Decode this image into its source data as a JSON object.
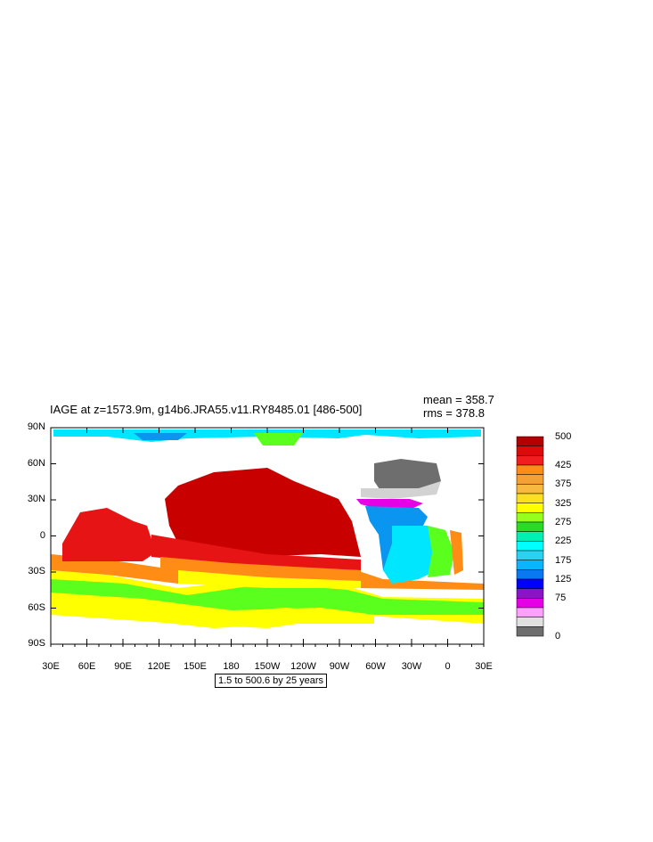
{
  "title": "IAGE at z=1573.9m, g14b6.JRA55.v11.RY8485.01 [486-500]",
  "stats": {
    "mean": "mean = 358.7",
    "rms": "rms = 378.8"
  },
  "lat_ticks": [
    "90N",
    "60N",
    "30N",
    "0",
    "30S",
    "60S",
    "90S"
  ],
  "lon_ticks": [
    "30E",
    "60E",
    "90E",
    "120E",
    "150E",
    "180",
    "150W",
    "120W",
    "90W",
    "60W",
    "30W",
    "0",
    "30E"
  ],
  "contour_info": "1.5 to 500.6 by 25 years",
  "colorbar": {
    "labels": [
      "500",
      "425",
      "375",
      "325",
      "275",
      "225",
      "175",
      "125",
      "75",
      "0"
    ],
    "colors": [
      "#b40000",
      "#dc0a0a",
      "#f01e1e",
      "#ff8c14",
      "#f5a033",
      "#f7b940",
      "#fae020",
      "#ffff00",
      "#96ff1e",
      "#28dc28",
      "#00f0b4",
      "#00ffff",
      "#28d2f0",
      "#0ab4ff",
      "#0a78f0",
      "#0000ff",
      "#8c14c8",
      "#e600e6",
      "#ffa0ff",
      "#e0e0e0",
      "#6e6e6e"
    ]
  },
  "colors": {
    "land": "#ffffff",
    "deep_red": "#c80000",
    "red": "#e61414",
    "orange": "#ff8c14",
    "yellow": "#ffff00",
    "green": "#5aff1e",
    "cyan": "#00e6ff",
    "blue": "#0a96f0",
    "magenta": "#e600e6",
    "gray": "#6e6e6e",
    "light_gray": "#d2d2d2"
  }
}
